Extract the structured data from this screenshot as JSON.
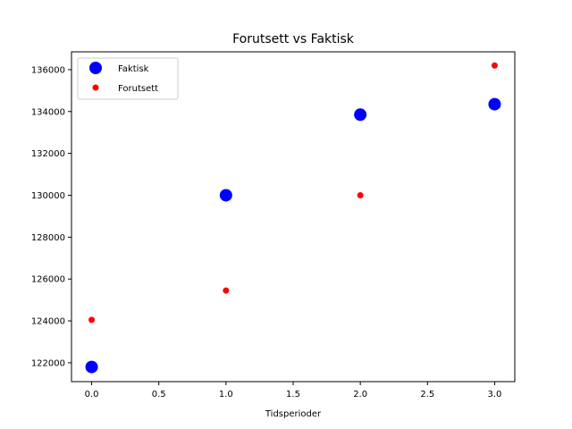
{
  "chart_data": {
    "type": "scatter",
    "title": "Forutsett vs Faktisk",
    "xlabel": "Tidsperioder",
    "ylabel": "",
    "xlim": [
      -0.15,
      3.15
    ],
    "ylim": [
      121100,
      136850
    ],
    "xticks": [
      "0.0",
      "0.5",
      "1.0",
      "1.5",
      "2.0",
      "2.5",
      "3.0"
    ],
    "yticks": [
      "122000",
      "124000",
      "126000",
      "128000",
      "130000",
      "132000",
      "134000",
      "136000"
    ],
    "grid": false,
    "legend_position": "top-left",
    "series": [
      {
        "name": "Faktisk",
        "color": "#0000ff",
        "marker": "large-circle",
        "x": [
          0,
          1,
          2,
          3
        ],
        "y": [
          121800,
          130000,
          133850,
          134350
        ]
      },
      {
        "name": "Forutsett",
        "color": "#ff0000",
        "marker": "small-circle",
        "x": [
          0,
          1,
          2,
          3
        ],
        "y": [
          124050,
          125450,
          130000,
          136200
        ]
      }
    ]
  }
}
